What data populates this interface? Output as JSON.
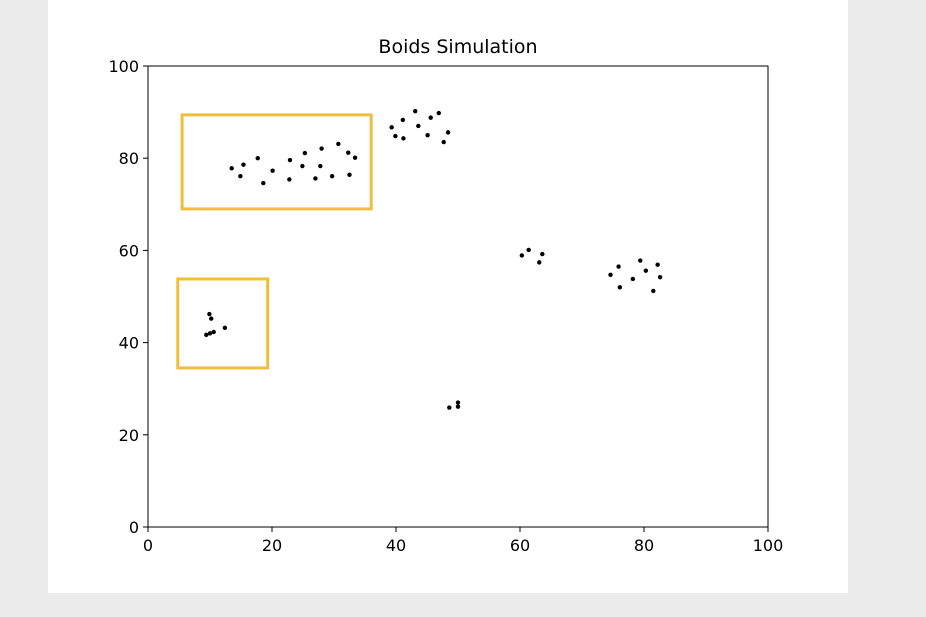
{
  "chart_data": {
    "type": "scatter",
    "title": "Boids Simulation",
    "xlabel": "",
    "ylabel": "",
    "xlim": [
      0,
      100
    ],
    "ylim": [
      0,
      100
    ],
    "xticks": [
      0,
      20,
      40,
      60,
      80,
      100
    ],
    "yticks": [
      0,
      20,
      40,
      60,
      80,
      100
    ],
    "grid": false,
    "marker_color": "#000000",
    "series": [
      {
        "points": [
          [
            13.5,
            77.8
          ],
          [
            15.4,
            78.6
          ],
          [
            14.9,
            76.1
          ],
          [
            17.7,
            80.0
          ],
          [
            18.6,
            74.6
          ],
          [
            20.1,
            77.3
          ],
          [
            22.9,
            79.6
          ],
          [
            22.8,
            75.4
          ],
          [
            24.9,
            78.3
          ],
          [
            25.3,
            81.1
          ],
          [
            27.0,
            75.6
          ],
          [
            27.8,
            78.3
          ],
          [
            28.0,
            82.1
          ],
          [
            29.7,
            76.1
          ],
          [
            30.7,
            83.1
          ],
          [
            32.3,
            81.2
          ],
          [
            32.5,
            76.4
          ],
          [
            33.4,
            80.1
          ],
          [
            39.3,
            86.7
          ],
          [
            39.9,
            84.8
          ],
          [
            41.1,
            88.3
          ],
          [
            41.2,
            84.3
          ],
          [
            43.1,
            90.2
          ],
          [
            43.6,
            87.0
          ],
          [
            45.1,
            85.0
          ],
          [
            45.6,
            88.8
          ],
          [
            46.9,
            89.8
          ],
          [
            47.7,
            83.5
          ],
          [
            48.4,
            85.6
          ],
          [
            60.3,
            58.9
          ],
          [
            61.4,
            60.1
          ],
          [
            63.1,
            57.4
          ],
          [
            63.6,
            59.2
          ],
          [
            74.6,
            54.7
          ],
          [
            75.9,
            56.5
          ],
          [
            76.1,
            52.0
          ],
          [
            78.2,
            53.8
          ],
          [
            79.4,
            57.8
          ],
          [
            80.3,
            55.6
          ],
          [
            81.5,
            51.2
          ],
          [
            82.2,
            56.9
          ],
          [
            82.6,
            54.2
          ],
          [
            48.6,
            25.9
          ],
          [
            50.0,
            27.0
          ],
          [
            50.0,
            26.1
          ],
          [
            9.9,
            46.2
          ],
          [
            10.2,
            45.2
          ],
          [
            9.4,
            41.7
          ],
          [
            10.0,
            42.0
          ],
          [
            10.6,
            42.3
          ],
          [
            12.4,
            43.2
          ]
        ]
      }
    ],
    "annotations": [
      {
        "type": "rect",
        "x0": 5.5,
        "y0": 69.0,
        "x1": 36.0,
        "y1": 89.4,
        "color": "#f0be3c"
      },
      {
        "type": "rect",
        "x0": 4.8,
        "y0": 34.5,
        "x1": 19.3,
        "y1": 53.8,
        "color": "#f0be3c"
      }
    ]
  }
}
